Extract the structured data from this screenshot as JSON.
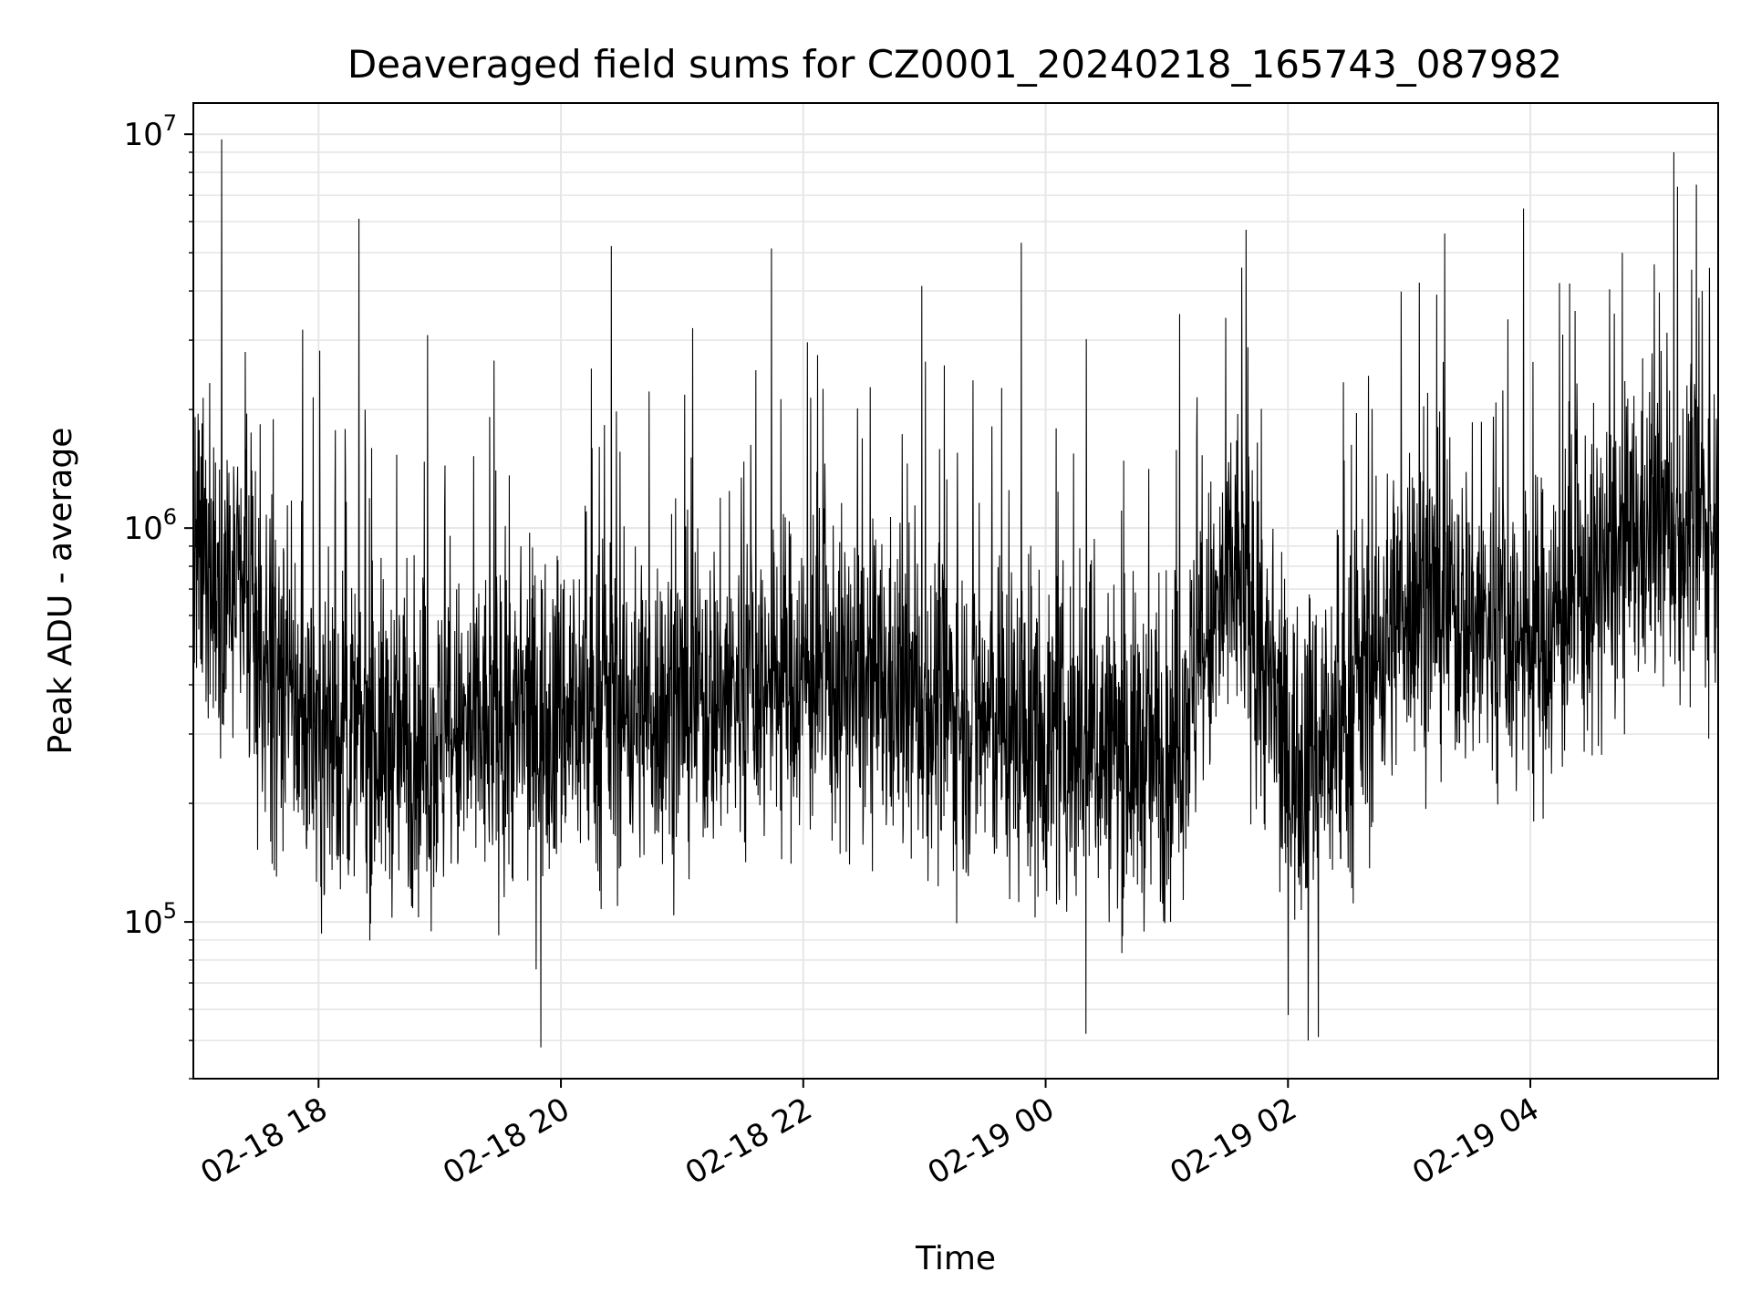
{
  "chart_data": {
    "type": "line",
    "title": "Deaveraged field sums for CZ0001_20240218_165743_087982",
    "xlabel": "Time",
    "ylabel": "Peak ADU - average",
    "yscale": "log",
    "ylim": [
      40000,
      12000000
    ],
    "xlim": [
      "2024-02-18T16:58",
      "2024-02-19T05:33"
    ],
    "grid": true,
    "line_color": "#000000",
    "x_ticks": [
      {
        "value": "2024-02-18T18:00",
        "label": "02-18 18"
      },
      {
        "value": "2024-02-18T20:00",
        "label": "02-18 20"
      },
      {
        "value": "2024-02-18T22:00",
        "label": "02-18 22"
      },
      {
        "value": "2024-02-19T00:00",
        "label": "02-19 00"
      },
      {
        "value": "2024-02-19T02:00",
        "label": "02-19 02"
      },
      {
        "value": "2024-02-19T04:00",
        "label": "02-19 04"
      }
    ],
    "y_ticks": [
      {
        "value": 100000,
        "base": "10",
        "exp": "5"
      },
      {
        "value": 1000000,
        "base": "10",
        "exp": "6"
      },
      {
        "value": 10000000,
        "base": "10",
        "exp": "7"
      }
    ],
    "series": [
      {
        "time_start": "2024-02-18T16:58",
        "time_end": "2024-02-19T05:33",
        "segment_baseline": [
          {
            "time": "2024-02-18T16:58",
            "value": 800000
          },
          {
            "time": "2024-02-18T17:18",
            "value": 700000
          },
          {
            "time": "2024-02-18T17:35",
            "value": 420000
          },
          {
            "time": "2024-02-18T18:00",
            "value": 300000
          },
          {
            "time": "2024-02-18T19:00",
            "value": 280000
          },
          {
            "time": "2024-02-18T20:00",
            "value": 340000
          },
          {
            "time": "2024-02-18T21:00",
            "value": 360000
          },
          {
            "time": "2024-02-18T22:00",
            "value": 420000
          },
          {
            "time": "2024-02-18T23:00",
            "value": 360000
          },
          {
            "time": "2024-02-19T00:00",
            "value": 290000
          },
          {
            "time": "2024-02-19T01:00",
            "value": 260000
          },
          {
            "time": "2024-02-19T01:35",
            "value": 800000
          },
          {
            "time": "2024-02-19T02:00",
            "value": 250000
          },
          {
            "time": "2024-02-19T02:25",
            "value": 300000
          },
          {
            "time": "2024-02-19T03:00",
            "value": 700000
          },
          {
            "time": "2024-02-19T04:00",
            "value": 500000
          },
          {
            "time": "2024-02-19T05:00",
            "value": 1000000
          },
          {
            "time": "2024-02-19T05:33",
            "value": 1000000
          }
        ],
        "notable_peaks": [
          {
            "time": "2024-02-18T17:12",
            "value": 9700000
          },
          {
            "time": "2024-02-18T18:20",
            "value": 6100000
          },
          {
            "time": "2024-02-18T20:25",
            "value": 5200000
          },
          {
            "time": "2024-02-18T23:48",
            "value": 5300000
          },
          {
            "time": "2024-02-19T03:05",
            "value": 4200000
          },
          {
            "time": "2024-02-19T05:25",
            "value": 4000000
          }
        ],
        "notable_minima": [
          {
            "time": "2024-02-18T19:50",
            "value": 48000
          },
          {
            "time": "2024-02-19T00:20",
            "value": 52000
          },
          {
            "time": "2024-02-19T02:10",
            "value": 50000
          },
          {
            "time": "2024-02-19T02:15",
            "value": 51000
          }
        ]
      }
    ]
  }
}
